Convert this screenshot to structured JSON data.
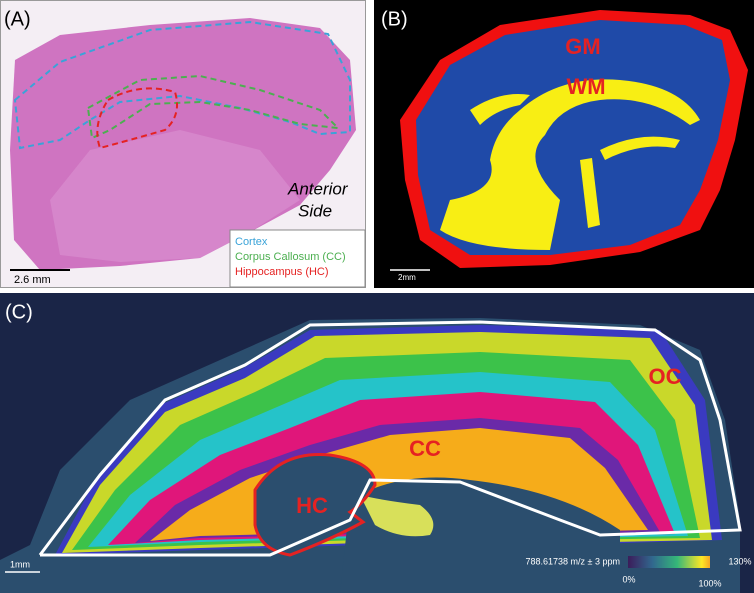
{
  "panels": [
    {
      "label": "(A)",
      "annotation": [
        "Anterior",
        "Side"
      ],
      "legend": [
        "Cortex",
        "Corpus Callosum (CC)",
        "Hippocampus (HC)"
      ],
      "scale_bar": "2.6 mm"
    },
    {
      "label": "(B)",
      "regions": [
        "GM",
        "WM"
      ],
      "scale_bar": "2mm"
    },
    {
      "label": "(C)",
      "regions": [
        "OC",
        "CC",
        "HC"
      ],
      "scale_bar": "1mm",
      "colorbar": {
        "title": "788.61738 m/z ± 3 ppm",
        "ticks": [
          "0%",
          "100%",
          "130%"
        ]
      }
    }
  ]
}
